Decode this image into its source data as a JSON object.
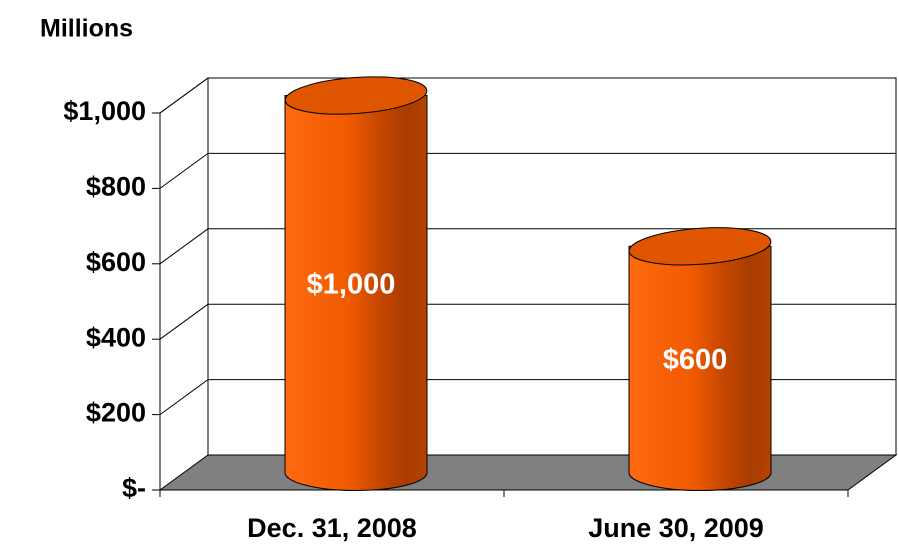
{
  "chart_data": {
    "type": "bar3d",
    "y_axis_label": "Millions",
    "categories": [
      "Dec. 31, 2008",
      "June 30, 2009"
    ],
    "values": [
      1000,
      600
    ],
    "value_labels": [
      "$1,000",
      "$600"
    ],
    "color": "#ff6600",
    "ylim": [
      0,
      1000
    ],
    "yticks": [
      {
        "value": 0,
        "label": "$-"
      },
      {
        "value": 200,
        "label": "$200"
      },
      {
        "value": 400,
        "label": "$400"
      },
      {
        "value": 600,
        "label": "$600"
      },
      {
        "value": 800,
        "label": "$800"
      },
      {
        "value": 1000,
        "label": "$1,000"
      }
    ],
    "grid": true
  }
}
